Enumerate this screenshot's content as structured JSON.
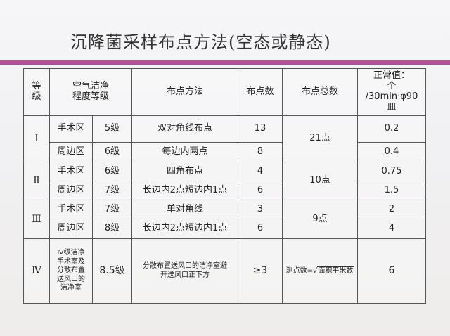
{
  "title": "沉降菌采样布点方法(空态或静态)",
  "colors": {
    "accent_bar": "#b34f9c"
  },
  "headers": {
    "grade": "等级",
    "cleanliness": "空气洁净程度等级",
    "method": "布点方法",
    "points": "布点数",
    "total": "布点总数",
    "normal_line1": "正常值：",
    "normal_line2": "个",
    "normal_line3": "/30min·φ90",
    "normal_line4": "皿"
  },
  "rows": [
    {
      "grade": "Ⅰ",
      "area": "手术区",
      "level": "5级",
      "method": "双对角线布点",
      "points": "13",
      "total": "21点",
      "normal": "0.2"
    },
    {
      "area": "周边区",
      "level": "6级",
      "method": "每边内两点",
      "points": "8",
      "normal": "0.4"
    },
    {
      "grade": "Ⅱ",
      "area": "手术区",
      "level": "6级",
      "method": "四角布点",
      "points": "4",
      "total": "10点",
      "normal": "0.75"
    },
    {
      "area": "周边区",
      "level": "7级",
      "method": "长边内2点短边内1点",
      "points": "6",
      "normal": "1.5"
    },
    {
      "grade": "Ⅲ",
      "area": "手术区",
      "level": "7级",
      "method": "单对角线",
      "points": "3",
      "total": "9点",
      "normal": "2"
    },
    {
      "area": "周边区",
      "level": "8级",
      "method": "长边内2点短边内1点",
      "points": "6",
      "normal": "4"
    },
    {
      "grade": "Ⅳ",
      "area": "Ⅳ级洁净手术室及分散布置送风口的洁净室",
      "level": "8.5级",
      "method": "分散布置送风口的洁净室避开送风口正下方",
      "points": "≥3",
      "total_prefix": "测点数=",
      "total_sqrt": "面积平米数",
      "normal": "6"
    }
  ]
}
